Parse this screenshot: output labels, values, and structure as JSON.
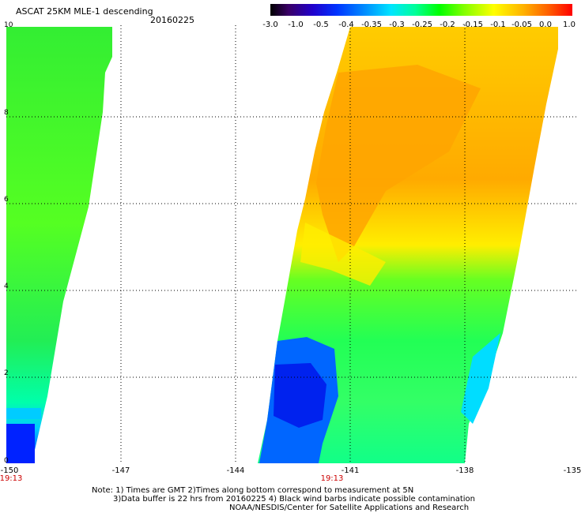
{
  "title": "ASCAT 25KM MLE-1 descending",
  "date": "20160225",
  "colorbar": {
    "labels": [
      "-3.0",
      "-1.0",
      "-0.5",
      "-0.4",
      "-0.35",
      "-0.3",
      "-0.25",
      "-0.2",
      "-0.15",
      "-0.1",
      "-0.05",
      "0.0",
      "1.0"
    ]
  },
  "axes": {
    "y_labels": [
      "10",
      "8",
      "6",
      "4",
      "2",
      "0"
    ],
    "x_labels": [
      "-150",
      "-147",
      "-144",
      "-141",
      "-138",
      "-135"
    ]
  },
  "times": {
    "left": "19:13",
    "center": "19:13"
  },
  "notes": {
    "line1": "Note: 1) Times are GMT 2)Times along bottom correspond to measurement at 5N",
    "line2": "3)Data buffer is 22 hrs from 20160225 4) Black wind barbs indicate possible contamination",
    "line3": "NOAA/NESDIS/Center for Satellite Applications and Research"
  }
}
